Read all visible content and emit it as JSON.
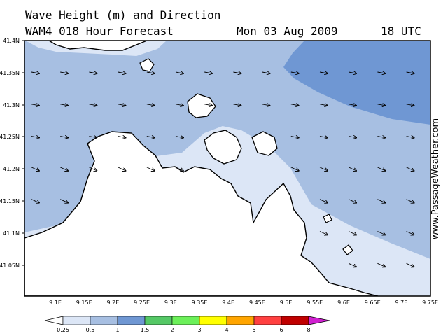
{
  "header": {
    "title": "Wave Height (m) and Direction",
    "subtitle": "WAM4 018 Hour Forecast",
    "date": "Mon 03 Aug 2009",
    "time": "18 UTC"
  },
  "watermark": "www.PassageWeather.com",
  "map": {
    "lat_labels": [
      "41.4N",
      "41.35N",
      "41.3N",
      "41.25N",
      "41.2N",
      "41.15N",
      "41.1N",
      "41.05N"
    ],
    "lon_labels": [
      "9.1E",
      "9.15E",
      "9.2E",
      "9.25E",
      "9.3E",
      "9.35E",
      "9.4E",
      "9.45E",
      "9.5E",
      "9.55E",
      "9.6E",
      "9.65E",
      "9.7E",
      "9.75E"
    ],
    "wave_direction": "east-southeast",
    "colors": {
      "land": "#ffffff",
      "band_0_25": "#dce6f6",
      "band_0_5": "#a7bfe2",
      "band_1": "#6f97d3"
    }
  },
  "legend": {
    "labels": [
      "0.25",
      "0.5",
      "1",
      "1.5",
      "2",
      "3",
      "4",
      "5",
      "6",
      "8"
    ],
    "colors": [
      "#ffffff",
      "#dce6f6",
      "#a7bfe2",
      "#6f97d3",
      "#55c866",
      "#6cf05a",
      "#ffff00",
      "#ffa500",
      "#ff4040",
      "#c00000",
      "#d020d0"
    ]
  }
}
